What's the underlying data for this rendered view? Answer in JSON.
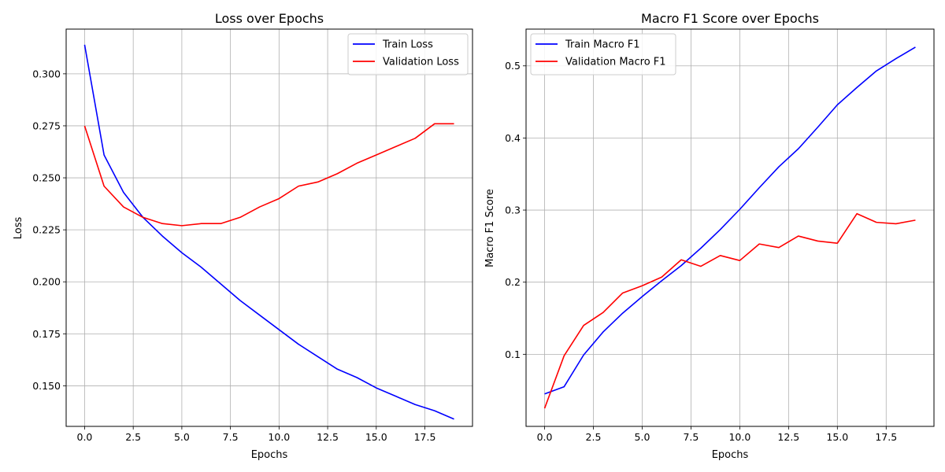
{
  "chart_data": [
    {
      "type": "line",
      "title": "Loss over Epochs",
      "xlabel": "Epochs",
      "ylabel": "Loss",
      "xlim": [
        -0.95,
        19.95
      ],
      "ylim": [
        0.1305,
        0.3215
      ],
      "x_ticks": [
        0.0,
        2.5,
        5.0,
        7.5,
        10.0,
        12.5,
        15.0,
        17.5
      ],
      "x_tick_labels": [
        "0.0",
        "2.5",
        "5.0",
        "7.5",
        "10.0",
        "12.5",
        "15.0",
        "17.5"
      ],
      "y_ticks": [
        0.15,
        0.175,
        0.2,
        0.225,
        0.25,
        0.275,
        0.3
      ],
      "y_tick_labels": [
        "0.150",
        "0.175",
        "0.200",
        "0.225",
        "0.250",
        "0.275",
        "0.300"
      ],
      "grid": true,
      "legend_position": "top-right",
      "x": [
        0,
        1,
        2,
        3,
        4,
        5,
        6,
        7,
        8,
        9,
        10,
        11,
        12,
        13,
        14,
        15,
        16,
        17,
        18,
        19
      ],
      "series": [
        {
          "name": "Train Loss",
          "color": "#0000ff",
          "values": [
            0.314,
            0.261,
            0.243,
            0.231,
            0.222,
            0.214,
            0.207,
            0.199,
            0.191,
            0.184,
            0.177,
            0.17,
            0.164,
            0.158,
            0.154,
            0.149,
            0.145,
            0.141,
            0.138,
            0.134
          ]
        },
        {
          "name": "Validation Loss",
          "color": "#ff0000",
          "values": [
            0.275,
            0.246,
            0.236,
            0.231,
            0.228,
            0.227,
            0.228,
            0.228,
            0.231,
            0.236,
            0.24,
            0.246,
            0.248,
            0.252,
            0.257,
            0.261,
            0.265,
            0.269,
            0.276,
            0.276
          ]
        }
      ]
    },
    {
      "type": "line",
      "title": "Macro F1 Score over Epochs",
      "xlabel": "Epochs",
      "ylabel": "Macro F1 Score",
      "xlim": [
        -0.95,
        19.95
      ],
      "ylim": [
        0.0,
        0.551
      ],
      "x_ticks": [
        0.0,
        2.5,
        5.0,
        7.5,
        10.0,
        12.5,
        15.0,
        17.5
      ],
      "x_tick_labels": [
        "0.0",
        "2.5",
        "5.0",
        "7.5",
        "10.0",
        "12.5",
        "15.0",
        "17.5"
      ],
      "y_ticks": [
        0.1,
        0.2,
        0.3,
        0.4,
        0.5
      ],
      "y_tick_labels": [
        "0.1",
        "0.2",
        "0.3",
        "0.4",
        "0.5"
      ],
      "grid": true,
      "legend_position": "top-left",
      "x": [
        0,
        1,
        2,
        3,
        4,
        5,
        6,
        7,
        8,
        9,
        10,
        11,
        12,
        13,
        14,
        15,
        16,
        17,
        18,
        19
      ],
      "series": [
        {
          "name": "Train Macro F1",
          "color": "#0000ff",
          "values": [
            0.045,
            0.055,
            0.099,
            0.131,
            0.157,
            0.18,
            0.202,
            0.223,
            0.247,
            0.273,
            0.301,
            0.331,
            0.36,
            0.385,
            0.415,
            0.446,
            0.47,
            0.493,
            0.51,
            0.526
          ]
        },
        {
          "name": "Validation Macro F1",
          "color": "#ff0000",
          "values": [
            0.025,
            0.098,
            0.14,
            0.158,
            0.185,
            0.195,
            0.207,
            0.231,
            0.222,
            0.237,
            0.23,
            0.253,
            0.248,
            0.264,
            0.257,
            0.254,
            0.295,
            0.283,
            0.281,
            0.286
          ]
        }
      ]
    }
  ]
}
